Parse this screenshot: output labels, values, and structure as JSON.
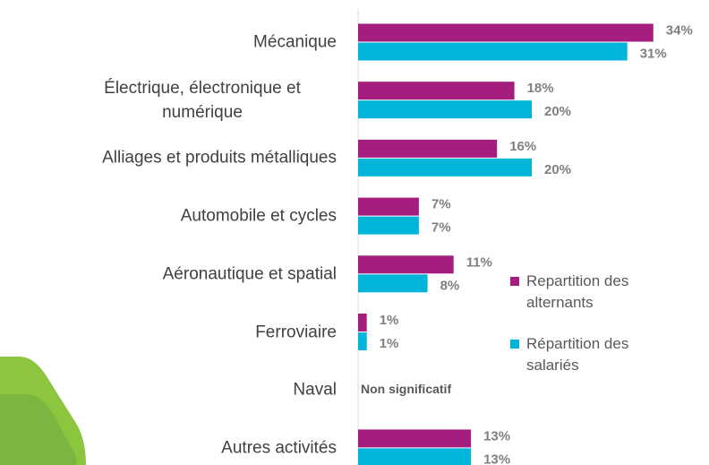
{
  "chart_data": {
    "type": "bar",
    "orientation": "horizontal",
    "categories": [
      "Mécanique",
      "Électrique, électronique et numérique",
      "Alliages et produits métalliques",
      "Automobile et cycles",
      "Aéronautique et spatial",
      "Ferroviaire",
      "Naval",
      "Autres activités"
    ],
    "series": [
      {
        "name": "Repartition des alternants",
        "color": "#a51d7e",
        "values": [
          34,
          18,
          16,
          7,
          11,
          1,
          null,
          13
        ],
        "value_labels": [
          "34%",
          "18%",
          "16%",
          "7%",
          "11%",
          "1%",
          null,
          "13%"
        ]
      },
      {
        "name": "Répartition des salariés",
        "color": "#00b5d9",
        "values": [
          31,
          20,
          20,
          7,
          8,
          1,
          null,
          13
        ],
        "value_labels": [
          "31%",
          "20%",
          "20%",
          "7%",
          "8%",
          "1%",
          null,
          "13%"
        ]
      }
    ],
    "annotation": "Non significatif"
  }
}
